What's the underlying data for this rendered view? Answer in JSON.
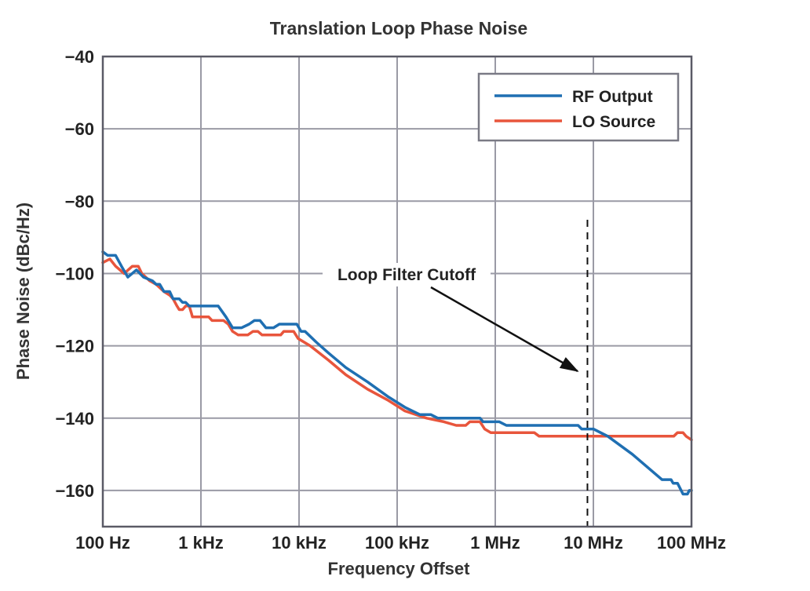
{
  "chart_data": {
    "type": "line",
    "title": "Translation Loop Phase Noise",
    "xlabel": "Frequency Offset",
    "ylabel": "Phase Noise (dBc/Hz)",
    "x_scale": "log",
    "xlim_hz": [
      100,
      100000000
    ],
    "ylim": [
      -170,
      -40
    ],
    "x_ticks": [
      {
        "value": 100,
        "label": "100 Hz"
      },
      {
        "value": 1000,
        "label": "1 kHz"
      },
      {
        "value": 10000,
        "label": "10 kHz"
      },
      {
        "value": 100000,
        "label": "100 kHz"
      },
      {
        "value": 1000000,
        "label": "1 MHz"
      },
      {
        "value": 10000000,
        "label": "10 MHz"
      },
      {
        "value": 100000000,
        "label": "100 MHz"
      }
    ],
    "y_ticks": [
      {
        "value": -40,
        "label": "−40"
      },
      {
        "value": -60,
        "label": "−60"
      },
      {
        "value": -80,
        "label": "−80"
      },
      {
        "value": -100,
        "label": "−100"
      },
      {
        "value": -120,
        "label": "−120"
      },
      {
        "value": -140,
        "label": "−140"
      },
      {
        "value": -160,
        "label": "−160"
      }
    ],
    "grid": true,
    "legend_position": "top-right",
    "series": [
      {
        "name": "RF Output",
        "color": "#1f6fb2",
        "points": [
          [
            100,
            -94
          ],
          [
            112,
            -95
          ],
          [
            135,
            -95
          ],
          [
            155,
            -98
          ],
          [
            180,
            -101
          ],
          [
            220,
            -99
          ],
          [
            260,
            -101
          ],
          [
            320,
            -102
          ],
          [
            350,
            -103
          ],
          [
            380,
            -103
          ],
          [
            420,
            -105
          ],
          [
            480,
            -105
          ],
          [
            520,
            -107
          ],
          [
            600,
            -107
          ],
          [
            650,
            -108
          ],
          [
            700,
            -108
          ],
          [
            760,
            -109
          ],
          [
            900,
            -109
          ],
          [
            1000,
            -109
          ],
          [
            1500,
            -109
          ],
          [
            1800,
            -112
          ],
          [
            2100,
            -115
          ],
          [
            2600,
            -115
          ],
          [
            3100,
            -114
          ],
          [
            3500,
            -113
          ],
          [
            4000,
            -113
          ],
          [
            4600,
            -115
          ],
          [
            5500,
            -115
          ],
          [
            6300,
            -114
          ],
          [
            8000,
            -114
          ],
          [
            9500,
            -114
          ],
          [
            10500,
            -116
          ],
          [
            11500,
            -116
          ],
          [
            15000,
            -119
          ],
          [
            20000,
            -122
          ],
          [
            30000,
            -126
          ],
          [
            50000,
            -130
          ],
          [
            80000,
            -134
          ],
          [
            120000,
            -137
          ],
          [
            170000,
            -139
          ],
          [
            220000,
            -139
          ],
          [
            260000,
            -140
          ],
          [
            500000,
            -140
          ],
          [
            700000,
            -140
          ],
          [
            750000,
            -141
          ],
          [
            1100000,
            -141
          ],
          [
            1300000,
            -142
          ],
          [
            3000000,
            -142
          ],
          [
            7000000,
            -142
          ],
          [
            7600000,
            -143
          ],
          [
            10000000,
            -143
          ],
          [
            14000000,
            -145
          ],
          [
            25000000,
            -150
          ],
          [
            50000000,
            -157
          ],
          [
            62000000,
            -157
          ],
          [
            65000000,
            -158
          ],
          [
            72000000,
            -158
          ],
          [
            82000000,
            -161
          ],
          [
            91000000,
            -161
          ],
          [
            95000000,
            -160
          ],
          [
            100000000,
            -160
          ]
        ]
      },
      {
        "name": "LO Source",
        "color": "#e8553c",
        "points": [
          [
            100,
            -97
          ],
          [
            118,
            -96
          ],
          [
            135,
            -98
          ],
          [
            165,
            -100
          ],
          [
            200,
            -98
          ],
          [
            230,
            -98
          ],
          [
            250,
            -100
          ],
          [
            300,
            -102
          ],
          [
            350,
            -103
          ],
          [
            420,
            -105
          ],
          [
            480,
            -106
          ],
          [
            520,
            -107
          ],
          [
            570,
            -109
          ],
          [
            600,
            -110
          ],
          [
            650,
            -110
          ],
          [
            700,
            -109
          ],
          [
            760,
            -109
          ],
          [
            800,
            -111
          ],
          [
            820,
            -112
          ],
          [
            1000,
            -112
          ],
          [
            1200,
            -112
          ],
          [
            1300,
            -113
          ],
          [
            1700,
            -113
          ],
          [
            1900,
            -114
          ],
          [
            2100,
            -116
          ],
          [
            2400,
            -117
          ],
          [
            3000,
            -117
          ],
          [
            3400,
            -116
          ],
          [
            3800,
            -116
          ],
          [
            4200,
            -117
          ],
          [
            6500,
            -117
          ],
          [
            7000,
            -116
          ],
          [
            8800,
            -116
          ],
          [
            9800,
            -118
          ],
          [
            13000,
            -120
          ],
          [
            20000,
            -124
          ],
          [
            30000,
            -128
          ],
          [
            50000,
            -132
          ],
          [
            80000,
            -135
          ],
          [
            120000,
            -138
          ],
          [
            200000,
            -140
          ],
          [
            300000,
            -141
          ],
          [
            400000,
            -142
          ],
          [
            500000,
            -142
          ],
          [
            550000,
            -141
          ],
          [
            700000,
            -141
          ],
          [
            780000,
            -143
          ],
          [
            900000,
            -144
          ],
          [
            2500000,
            -144
          ],
          [
            2800000,
            -145
          ],
          [
            10000000,
            -145
          ],
          [
            20000000,
            -145
          ],
          [
            50000000,
            -145
          ],
          [
            66000000,
            -145
          ],
          [
            72000000,
            -144
          ],
          [
            82000000,
            -144
          ],
          [
            88000000,
            -145
          ],
          [
            100000000,
            -146
          ]
        ]
      }
    ],
    "annotations": [
      {
        "text": "Loop Filter Cutoff",
        "cutoff_frequency_hz": 8700000,
        "line_style": "dashed",
        "arrow_target": [
          6900000,
          -127
        ]
      }
    ]
  }
}
